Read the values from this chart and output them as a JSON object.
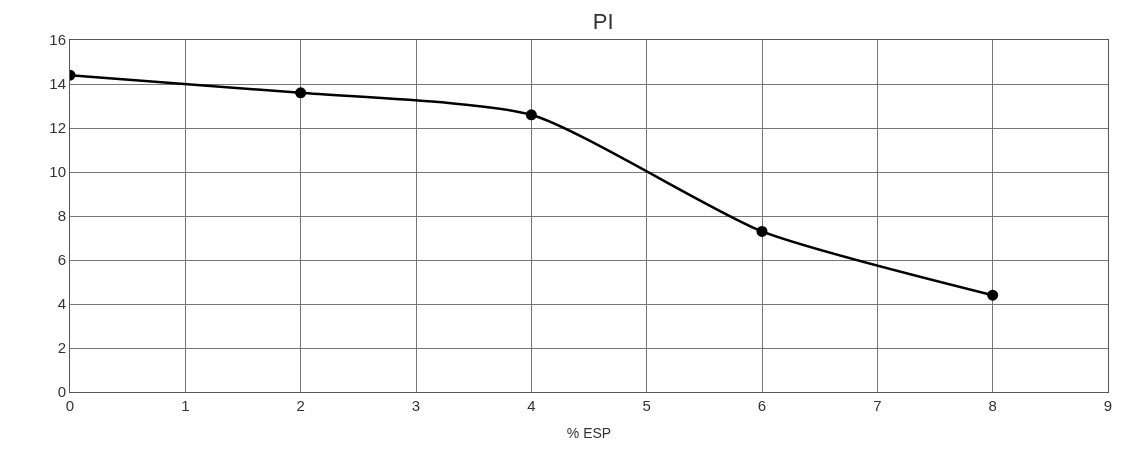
{
  "chart_data": {
    "type": "line",
    "title": "PI",
    "xlabel": "% ESP",
    "x": [
      0,
      2,
      4,
      6,
      8
    ],
    "series": [
      {
        "color": "#000000",
        "values": [
          14.4,
          13.6,
          12.6,
          7.3,
          4.4
        ]
      }
    ],
    "xlim": [
      0,
      9
    ],
    "xticks": [
      0,
      1,
      2,
      3,
      4,
      5,
      6,
      7,
      8,
      9
    ],
    "ylim": [
      0,
      16
    ],
    "yticks": [
      0,
      2,
      4,
      6,
      8,
      10,
      12,
      14,
      16
    ],
    "grid": true,
    "marker": "circle",
    "line_style": "solid"
  }
}
